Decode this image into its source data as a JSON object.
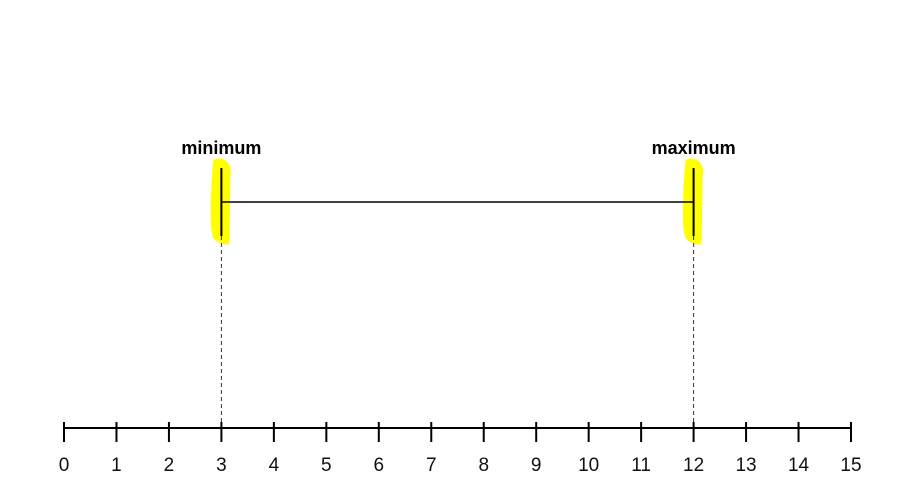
{
  "number_line": {
    "min": 0,
    "max": 15,
    "ticks": [
      0,
      1,
      2,
      3,
      4,
      5,
      6,
      7,
      8,
      9,
      10,
      11,
      12,
      13,
      14,
      15
    ]
  },
  "range": {
    "minimum_value": 3,
    "maximum_value": 12,
    "minimum_label": "minimum",
    "maximum_label": "maximum",
    "highlight_color": "#ffff00"
  }
}
